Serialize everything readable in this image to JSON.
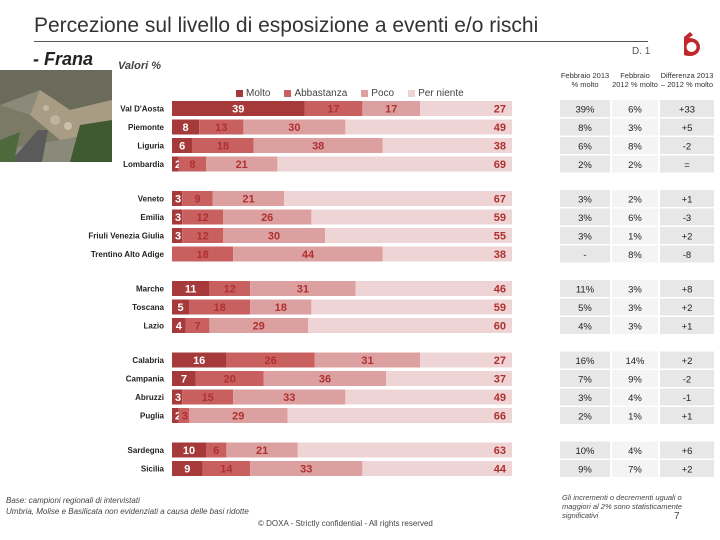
{
  "title": "Percezione sul livello di esposizione a eventi e/o rischi",
  "subtitle": "- Frana",
  "unit_label": "Valori %",
  "page_code": "D. 1",
  "legend": [
    "Molto",
    "Abbastanza",
    "Poco",
    "Per niente"
  ],
  "colors": {
    "molto": "#a63a3a",
    "abbastanza": "#c86060",
    "poco": "#dca0a0",
    "per_niente": "#eed4d4",
    "table_a": "#e7e7e7",
    "table_b": "#f4f4f4"
  },
  "table_headers": [
    "Febbraio 2013 % molto",
    "Febbraio 2012 % molto",
    "Differenza 2013 – 2012 % molto"
  ],
  "chart_data": {
    "type": "bar",
    "orientation": "horizontal-stacked-100",
    "title": "Percezione sul livello di esposizione a eventi e/o rischi - Frana",
    "series_names": [
      "Molto",
      "Abbastanza",
      "Poco",
      "Per niente"
    ],
    "rows": [
      {
        "region": "Val D'Aosta",
        "values": [
          39,
          17,
          17,
          27
        ],
        "labels": [
          "39",
          "17",
          "17",
          "27"
        ],
        "y2013": "39%",
        "y2012": "6%",
        "diff": "+33",
        "group": 0
      },
      {
        "region": "Piemonte",
        "values": [
          8,
          13,
          30,
          49
        ],
        "labels": [
          "8",
          "13",
          "30",
          "49"
        ],
        "y2013": "8%",
        "y2012": "3%",
        "diff": "+5",
        "group": 0
      },
      {
        "region": "Liguria",
        "values": [
          6,
          18,
          38,
          38
        ],
        "labels": [
          "6",
          "18",
          "38",
          "38"
        ],
        "y2013": "6%",
        "y2012": "8%",
        "diff": "-2",
        "group": 0
      },
      {
        "region": "Lombardia",
        "values": [
          2,
          8,
          21,
          69
        ],
        "labels": [
          "2",
          "8",
          "21",
          "69"
        ],
        "y2013": "2%",
        "y2012": "2%",
        "diff": "=",
        "group": 0
      },
      {
        "region": "Veneto",
        "values": [
          3,
          9,
          21,
          67
        ],
        "labels": [
          "3",
          "9",
          "21",
          "67"
        ],
        "y2013": "3%",
        "y2012": "2%",
        "diff": "+1",
        "group": 1
      },
      {
        "region": "Emilia",
        "values": [
          3,
          12,
          26,
          59
        ],
        "labels": [
          "3",
          "12",
          "26",
          "59"
        ],
        "y2013": "3%",
        "y2012": "6%",
        "diff": "-3",
        "group": 1
      },
      {
        "region": "Friuli Venezia Giulia",
        "values": [
          3,
          12,
          30,
          55
        ],
        "labels": [
          "3",
          "12",
          "30",
          "55"
        ],
        "y2013": "3%",
        "y2012": "1%",
        "diff": "+2",
        "group": 1
      },
      {
        "region": "Trentino Alto Adige",
        "values": [
          0,
          18,
          44,
          38
        ],
        "labels": [
          "",
          "18",
          "44",
          "38"
        ],
        "y2013": "-",
        "y2012": "8%",
        "diff": "-8",
        "group": 1
      },
      {
        "region": "Marche",
        "values": [
          11,
          12,
          31,
          46
        ],
        "labels": [
          "11",
          "12",
          "31",
          "46"
        ],
        "y2013": "11%",
        "y2012": "3%",
        "diff": "+8",
        "group": 2
      },
      {
        "region": "Toscana",
        "values": [
          5,
          18,
          18,
          59
        ],
        "labels": [
          "5",
          "18",
          "18",
          "59"
        ],
        "y2013": "5%",
        "y2012": "3%",
        "diff": "+2",
        "group": 2
      },
      {
        "region": "Lazio",
        "values": [
          4,
          7,
          29,
          60
        ],
        "labels": [
          "4",
          "7",
          "29",
          "60"
        ],
        "y2013": "4%",
        "y2012": "3%",
        "diff": "+1",
        "group": 2
      },
      {
        "region": "Calabria",
        "values": [
          16,
          26,
          31,
          27
        ],
        "labels": [
          "16",
          "26",
          "31",
          "27"
        ],
        "y2013": "16%",
        "y2012": "14%",
        "diff": "+2",
        "group": 3
      },
      {
        "region": "Campania",
        "values": [
          7,
          20,
          36,
          37
        ],
        "labels": [
          "7",
          "20",
          "36",
          "37"
        ],
        "y2013": "7%",
        "y2012": "9%",
        "diff": "-2",
        "group": 3
      },
      {
        "region": "Abruzzi",
        "values": [
          3,
          15,
          33,
          49
        ],
        "labels": [
          "3",
          "15",
          "33",
          "49"
        ],
        "y2013": "3%",
        "y2012": "4%",
        "diff": "-1",
        "group": 3
      },
      {
        "region": "Puglia",
        "values": [
          2,
          3,
          29,
          66
        ],
        "labels": [
          "2",
          "3",
          "29",
          "66"
        ],
        "y2013": "2%",
        "y2012": "1%",
        "diff": "+1",
        "group": 3
      },
      {
        "region": "Sardegna",
        "values": [
          10,
          6,
          21,
          63
        ],
        "labels": [
          "10",
          "6",
          "21",
          "63"
        ],
        "y2013": "10%",
        "y2012": "4%",
        "diff": "+6",
        "group": 4
      },
      {
        "region": "Sicilia",
        "values": [
          9,
          14,
          33,
          44
        ],
        "labels": [
          "9",
          "14",
          "33",
          "44"
        ],
        "y2013": "9%",
        "y2012": "7%",
        "diff": "+2",
        "group": 4
      }
    ],
    "xlim": [
      0,
      100
    ]
  },
  "footnote_lines": [
    "Base: campioni regionali di intervistati",
    "Umbria, Molise e Basilicata non evidenziati a causa delle basi ridotte"
  ],
  "copyright": "© DOXA - Strictly confidential - All rights reserved",
  "significance_note": "Gli incrementi o decrementi uguali o maggiori al 2% sono statisticamente significativi",
  "page_number": "7"
}
